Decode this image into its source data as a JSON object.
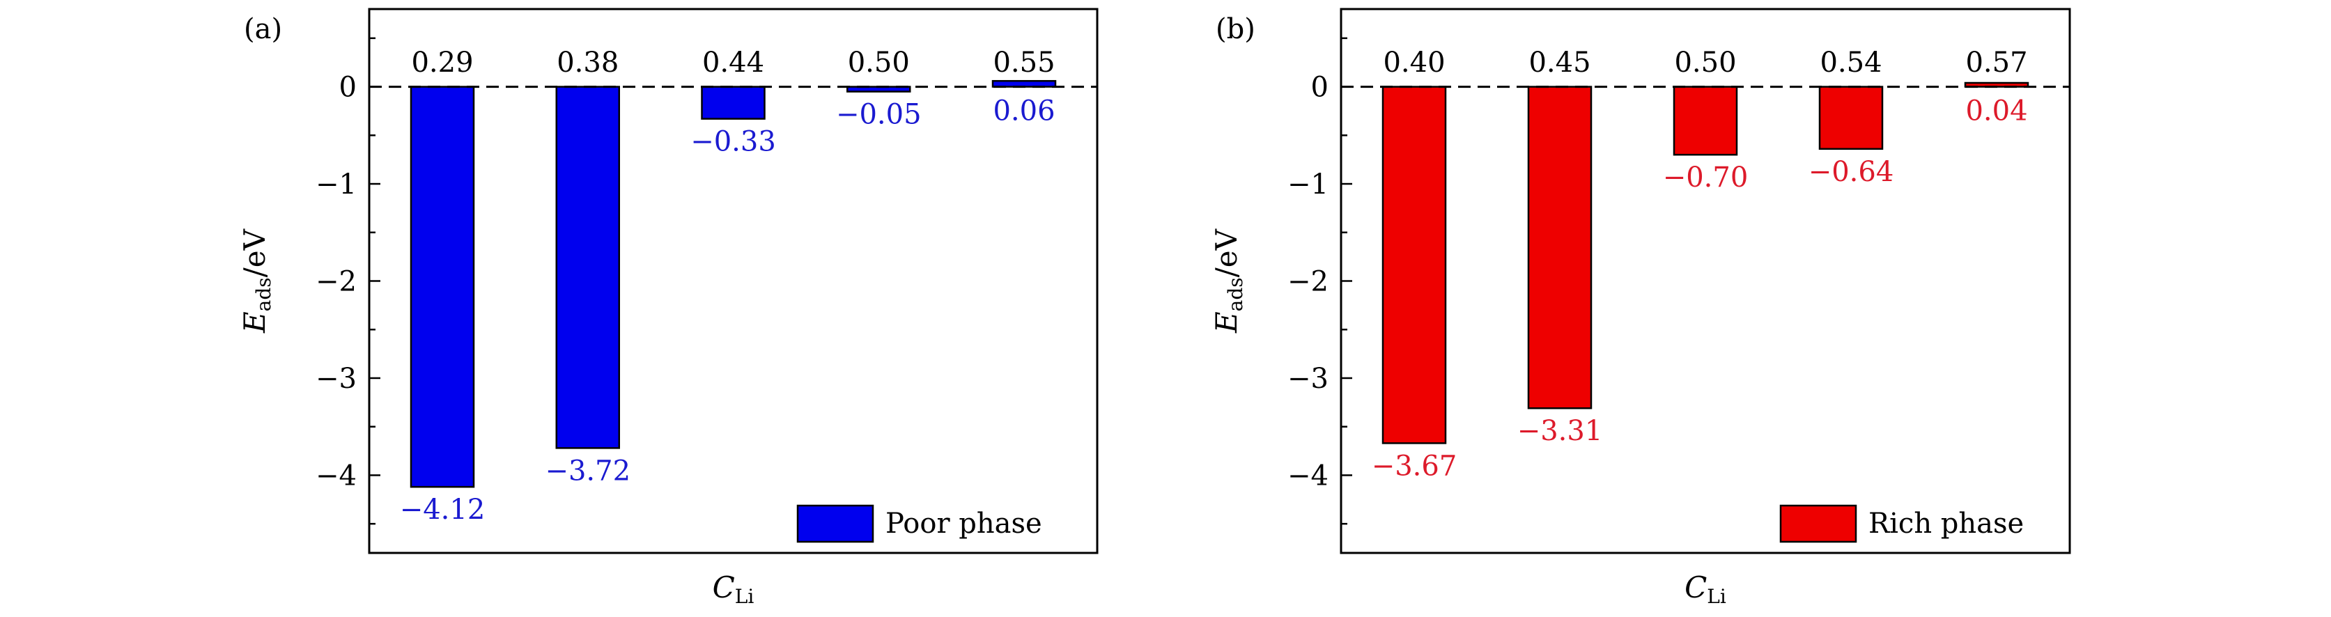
{
  "chart_data": [
    {
      "type": "bar",
      "panel_label": "(a)",
      "categories": [
        "0.29",
        "0.38",
        "0.44",
        "0.50",
        "0.55"
      ],
      "series": [
        {
          "name": "Poor phase",
          "values": [
            -4.12,
            -3.72,
            -0.33,
            -0.05,
            0.06
          ],
          "labels": [
            "−4.12",
            "−3.72",
            "−0.33",
            "−0.05",
            "0.06"
          ]
        }
      ],
      "color": "#0000ee",
      "label_color": "#1a1ad0",
      "xlabel": "C",
      "xlabel_sub": "Li",
      "ylabel": "E",
      "ylabel_sub": "ads",
      "ylabel_unit": "/eV",
      "ylim": [
        -4.8,
        0.8
      ],
      "yticks": [
        0,
        -1,
        -2,
        -3,
        -4
      ],
      "ytick_labels": [
        "0",
        "−1",
        "−2",
        "−3",
        "−4"
      ],
      "reference_line": 0,
      "legend_position": "bottom-right"
    },
    {
      "type": "bar",
      "panel_label": "(b)",
      "categories": [
        "0.40",
        "0.45",
        "0.50",
        "0.54",
        "0.57"
      ],
      "series": [
        {
          "name": "Rich phase",
          "values": [
            -3.67,
            -3.31,
            -0.7,
            -0.64,
            0.04
          ],
          "labels": [
            "−3.67",
            "−3.31",
            "−0.70",
            "−0.64",
            "0.04"
          ]
        }
      ],
      "color": "#ee0000",
      "label_color": "#dd1a2a",
      "xlabel": "C",
      "xlabel_sub": "Li",
      "ylabel": "E",
      "ylabel_sub": "ads",
      "ylabel_unit": "/eV",
      "ylim": [
        -4.8,
        0.8
      ],
      "yticks": [
        0,
        -1,
        -2,
        -3,
        -4
      ],
      "ytick_labels": [
        "0",
        "−1",
        "−2",
        "−3",
        "−4"
      ],
      "reference_line": 0,
      "legend_position": "bottom-right"
    }
  ]
}
